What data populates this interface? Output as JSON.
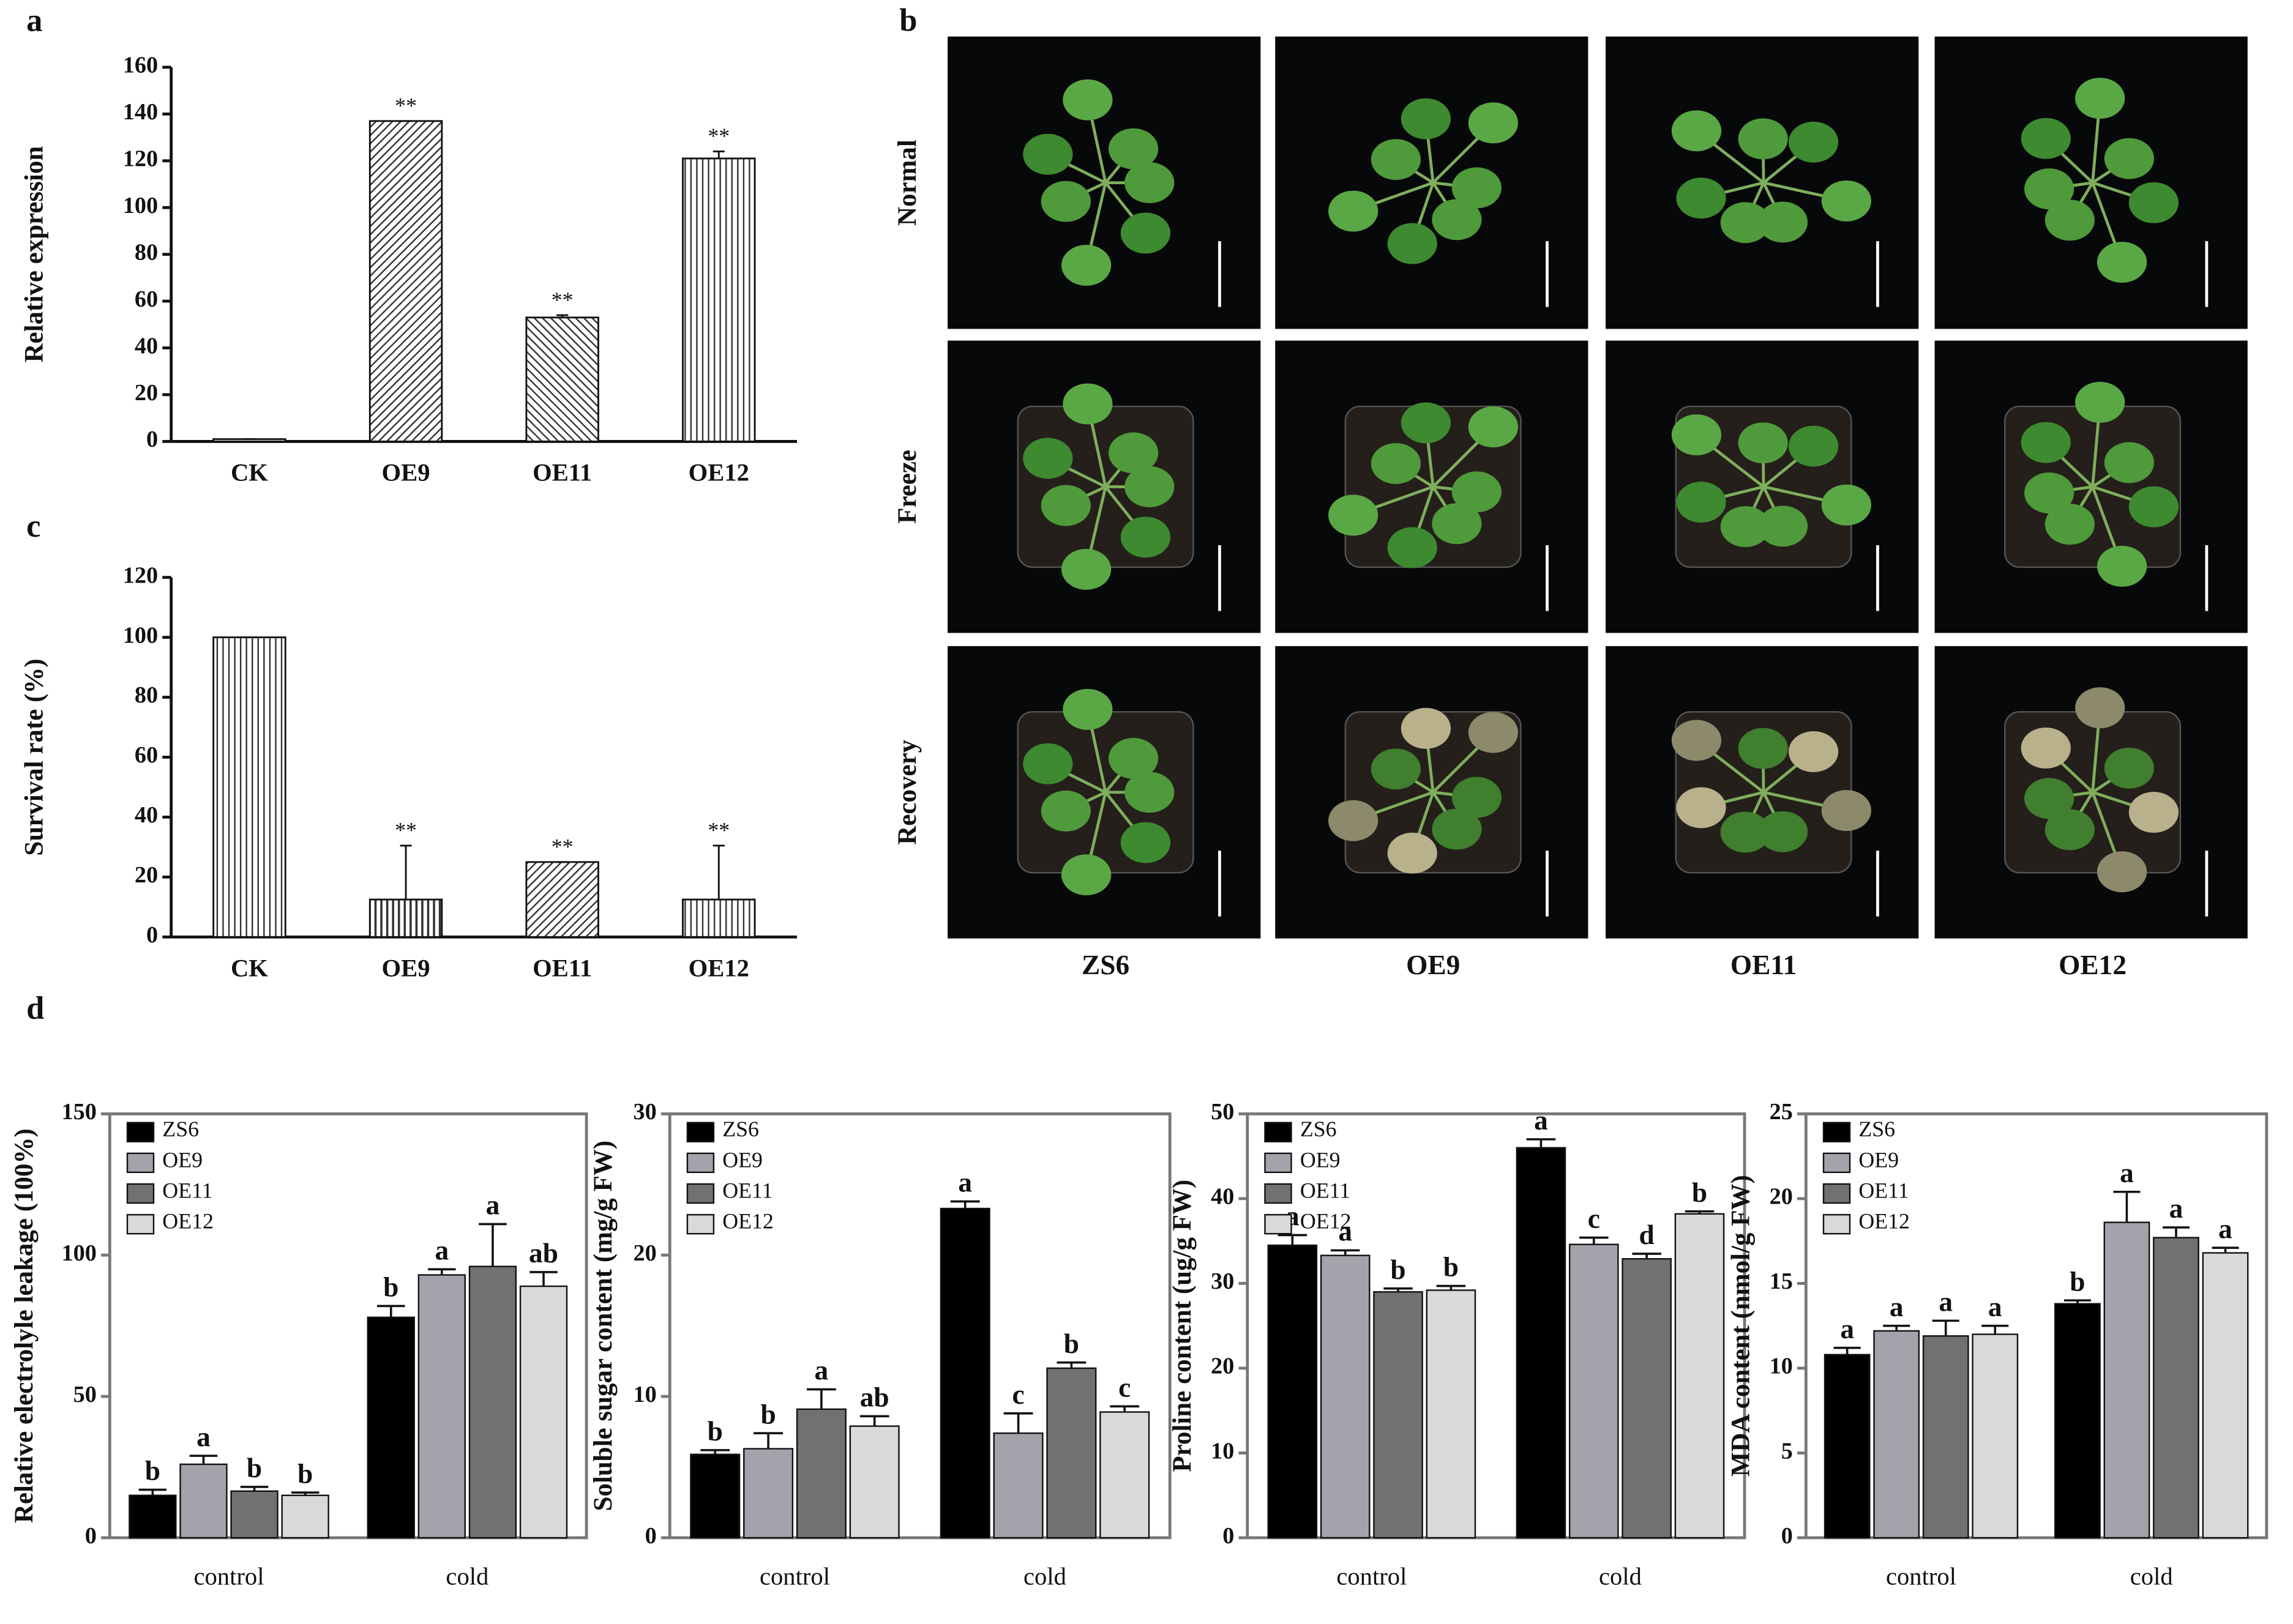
{
  "chart_data": [
    {
      "type": "bar",
      "panel": "a",
      "y_label": "Relative expression",
      "categories": [
        "CK",
        "OE9",
        "OE11",
        "OE12"
      ],
      "values": [
        1,
        137,
        53,
        121
      ],
      "errors": [
        0,
        0,
        1,
        3
      ],
      "annotations": [
        null,
        "**",
        "**",
        "**"
      ],
      "color": "#333333",
      "ylim": [
        0,
        160
      ],
      "yticks": [
        0,
        20,
        40,
        60,
        80,
        100,
        120,
        140,
        160
      ]
    },
    {
      "type": "bar",
      "panel": "c",
      "y_label": "Survival rate (%)",
      "categories": [
        "CK",
        "OE9",
        "OE11",
        "OE12"
      ],
      "values": [
        100,
        12.5,
        25,
        12.5
      ],
      "errors": [
        0,
        18,
        0,
        18
      ],
      "annotations": [
        null,
        "**",
        "**",
        "**"
      ],
      "color": "#333333",
      "ylim": [
        0,
        120
      ],
      "yticks": [
        0,
        20,
        40,
        60,
        80,
        100,
        120
      ]
    },
    {
      "type": "grouped_bar",
      "panel": "d",
      "y_label": "Relative electrolyle leakage (100%)",
      "categories": [
        "control",
        "cold"
      ],
      "legend": "upper left",
      "ylim": [
        0,
        150
      ],
      "yticks": [
        0,
        50,
        100,
        150
      ],
      "series": [
        {
          "name": "ZS6",
          "color": "#000000",
          "values": [
            15,
            78
          ],
          "errors": [
            2,
            4
          ],
          "annotations": [
            "b",
            "b"
          ]
        },
        {
          "name": "OE9",
          "color": "#a3a3ab",
          "values": [
            26,
            93
          ],
          "errors": [
            3,
            2
          ],
          "annotations": [
            "a",
            "a"
          ]
        },
        {
          "name": "OE11",
          "color": "#717171",
          "values": [
            16.5,
            96
          ],
          "errors": [
            1.5,
            15
          ],
          "annotations": [
            "b",
            "a"
          ]
        },
        {
          "name": "OE12",
          "color": "#d9d9d9",
          "values": [
            15,
            89
          ],
          "errors": [
            1,
            5
          ],
          "annotations": [
            "b",
            "ab"
          ]
        }
      ]
    },
    {
      "type": "grouped_bar",
      "y_label": "Soluble sugar content (mg/g FW)",
      "categories": [
        "control",
        "cold"
      ],
      "legend": "upper left",
      "ylim": [
        0,
        30
      ],
      "yticks": [
        0,
        10,
        20,
        30
      ],
      "series": [
        {
          "name": "ZS6",
          "color": "#000000",
          "values": [
            5.9,
            23.3
          ],
          "errors": [
            0.3,
            0.5
          ],
          "annotations": [
            "b",
            "a"
          ]
        },
        {
          "name": "OE9",
          "color": "#a3a3ab",
          "values": [
            6.3,
            7.4
          ],
          "errors": [
            1.1,
            1.4
          ],
          "annotations": [
            "b",
            "c"
          ]
        },
        {
          "name": "OE11",
          "color": "#717171",
          "values": [
            9.1,
            12
          ],
          "errors": [
            1.4,
            0.4
          ],
          "annotations": [
            "a",
            "b"
          ]
        },
        {
          "name": "OE12",
          "color": "#d9d9d9",
          "values": [
            7.9,
            8.9
          ],
          "errors": [
            0.7,
            0.4
          ],
          "annotations": [
            "ab",
            "c"
          ]
        }
      ]
    },
    {
      "type": "grouped_bar",
      "y_label": "Proline content (ug/g FW)",
      "categories": [
        "control",
        "cold"
      ],
      "legend": "upper left",
      "ylim": [
        0,
        50
      ],
      "yticks": [
        0,
        10,
        20,
        30,
        40,
        50
      ],
      "series": [
        {
          "name": "ZS6",
          "color": "#000000",
          "values": [
            34.5,
            46
          ],
          "errors": [
            1.2,
            1
          ],
          "annotations": [
            "a",
            "a"
          ]
        },
        {
          "name": "OE9",
          "color": "#a3a3ab",
          "values": [
            33.3,
            34.6
          ],
          "errors": [
            0.6,
            0.8
          ],
          "annotations": [
            "a",
            "c"
          ]
        },
        {
          "name": "OE11",
          "color": "#717171",
          "values": [
            29,
            32.9
          ],
          "errors": [
            0.4,
            0.6
          ],
          "annotations": [
            "b",
            "d"
          ]
        },
        {
          "name": "OE12",
          "color": "#d9d9d9",
          "values": [
            29.2,
            38.2
          ],
          "errors": [
            0.5,
            0.3
          ],
          "annotations": [
            "b",
            "b"
          ]
        }
      ]
    },
    {
      "type": "grouped_bar",
      "y_label": "MDA content (nmol/g FW)",
      "categories": [
        "control",
        "cold"
      ],
      "legend": "upper left",
      "ylim": [
        0,
        25
      ],
      "yticks": [
        0,
        5,
        10,
        15,
        20,
        25
      ],
      "series": [
        {
          "name": "ZS6",
          "color": "#000000",
          "values": [
            10.8,
            13.8
          ],
          "errors": [
            0.4,
            0.2
          ],
          "annotations": [
            "a",
            "b"
          ]
        },
        {
          "name": "OE9",
          "color": "#a3a3ab",
          "values": [
            12.2,
            18.6
          ],
          "errors": [
            0.3,
            1.8
          ],
          "annotations": [
            "a",
            "a"
          ]
        },
        {
          "name": "OE11",
          "color": "#717171",
          "values": [
            11.9,
            17.7
          ],
          "errors": [
            0.9,
            0.6
          ],
          "annotations": [
            "a",
            "a"
          ]
        },
        {
          "name": "OE12",
          "color": "#d9d9d9",
          "values": [
            12,
            16.8
          ],
          "errors": [
            0.5,
            0.3
          ],
          "annotations": [
            "a",
            "a"
          ]
        }
      ]
    }
  ],
  "photo_panel": {
    "panel": "b",
    "rows": [
      "Normal",
      "Freeze",
      "Recovery"
    ],
    "columns": [
      "ZS6",
      "OE9",
      "OE11",
      "OE12"
    ]
  }
}
